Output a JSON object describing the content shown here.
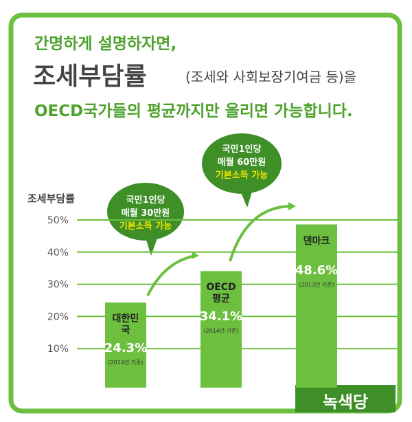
{
  "chart_data": {
    "type": "bar",
    "headline": [
      "간명하게 설명하자면,",
      "조세부담률",
      "(조세와 사회보장기여금 등)을",
      "OECD국가들의 평균까지만 올리면 가능합니다."
    ],
    "ylabel": "조세부담률",
    "categories": [
      "대한민국",
      "OECD 평균",
      "덴마크"
    ],
    "values": [
      24.3,
      34.1,
      48.6
    ],
    "value_labels": [
      "24.3%",
      "34.1%",
      "48.6%"
    ],
    "notes": [
      "(2014년 기준)",
      "(2014년 기준)",
      "(2013년 기준)"
    ],
    "color": "#6cbf3f",
    "ylim": [
      0,
      50
    ],
    "yticks": [
      {
        "value": 10,
        "label": "10%"
      },
      {
        "value": 20,
        "label": "20%"
      },
      {
        "value": 30,
        "label": "30%"
      },
      {
        "value": 40,
        "label": "40%"
      },
      {
        "value": 50,
        "label": "50%"
      }
    ],
    "grid": true,
    "callouts": [
      [
        "국민1인당",
        "매월 30만원",
        "기본소득 가능"
      ],
      [
        "국민1인당",
        "매월 60만원",
        "기본소득 가능"
      ]
    ],
    "brand": "녹색당"
  }
}
